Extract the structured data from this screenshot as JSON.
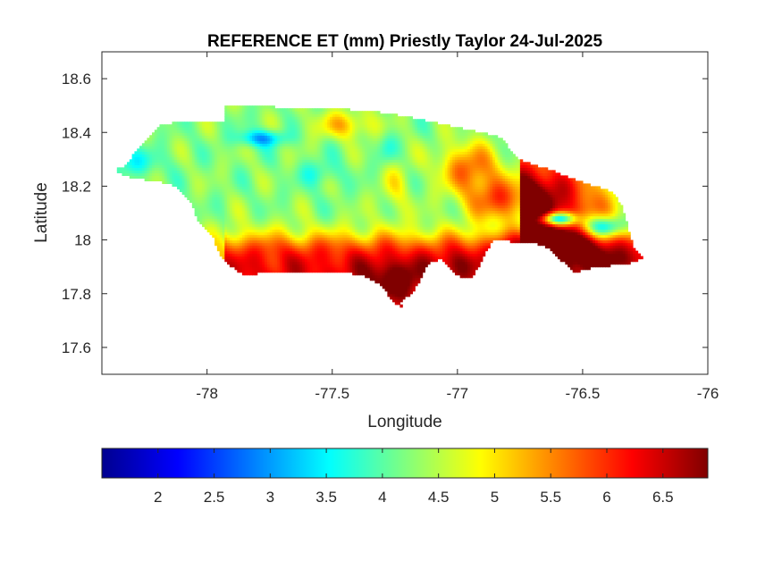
{
  "chart_data": {
    "type": "heatmap",
    "title": "REFERENCE ET (mm) Priestly Taylor 24-Jul-2025",
    "xlabel": "Longitude",
    "ylabel": "Latitude",
    "xlim": [
      -78.42,
      -76.0
    ],
    "ylim": [
      17.5,
      18.7
    ],
    "xticks": [
      -78,
      -77.5,
      -77,
      -76.5,
      -76
    ],
    "yticks": [
      17.6,
      17.8,
      18,
      18.2,
      18.4,
      18.6
    ],
    "grid": false,
    "colormap": "jet",
    "colorbar": {
      "location": "south",
      "range": [
        1.5,
        6.9
      ],
      "ticks": [
        2,
        2.5,
        3,
        3.5,
        4,
        4.5,
        5,
        5.5,
        6,
        6.5
      ]
    },
    "region_outline": [
      [
        -78.37,
        18.26
      ],
      [
        -78.32,
        18.28
      ],
      [
        -78.29,
        18.33
      ],
      [
        -78.26,
        18.35
      ],
      [
        -78.22,
        18.4
      ],
      [
        -78.18,
        18.43
      ],
      [
        -78.1,
        18.44
      ],
      [
        -78.02,
        18.44
      ],
      [
        -77.93,
        18.44
      ],
      [
        -77.93,
        18.5
      ],
      [
        -77.8,
        18.5
      ],
      [
        -77.65,
        18.49
      ],
      [
        -77.5,
        18.49
      ],
      [
        -77.35,
        18.48
      ],
      [
        -77.2,
        18.46
      ],
      [
        -77.05,
        18.43
      ],
      [
        -76.9,
        18.4
      ],
      [
        -76.82,
        18.38
      ],
      [
        -76.8,
        18.35
      ],
      [
        -76.75,
        18.3
      ],
      [
        -76.7,
        18.28
      ],
      [
        -76.62,
        18.26
      ],
      [
        -76.55,
        18.23
      ],
      [
        -76.45,
        18.2
      ],
      [
        -76.38,
        18.18
      ],
      [
        -76.34,
        18.12
      ],
      [
        -76.32,
        18.05
      ],
      [
        -76.3,
        17.98
      ],
      [
        -76.26,
        17.93
      ],
      [
        -76.33,
        17.91
      ],
      [
        -76.45,
        17.9
      ],
      [
        -76.53,
        17.88
      ],
      [
        -76.58,
        17.92
      ],
      [
        -76.63,
        17.97
      ],
      [
        -76.7,
        17.99
      ],
      [
        -76.75,
        17.99
      ],
      [
        -76.82,
        18.0
      ],
      [
        -76.86,
        18.0
      ],
      [
        -76.9,
        17.93
      ],
      [
        -76.94,
        17.86
      ],
      [
        -76.98,
        17.86
      ],
      [
        -77.03,
        17.89
      ],
      [
        -77.06,
        17.93
      ],
      [
        -77.12,
        17.91
      ],
      [
        -77.15,
        17.85
      ],
      [
        -77.18,
        17.8
      ],
      [
        -77.23,
        17.77
      ],
      [
        -77.2,
        17.74
      ],
      [
        -77.26,
        17.77
      ],
      [
        -77.3,
        17.83
      ],
      [
        -77.38,
        17.87
      ],
      [
        -77.45,
        17.88
      ],
      [
        -77.55,
        17.88
      ],
      [
        -77.65,
        17.88
      ],
      [
        -77.75,
        17.88
      ],
      [
        -77.85,
        17.87
      ],
      [
        -77.9,
        17.9
      ],
      [
        -77.95,
        17.95
      ],
      [
        -77.98,
        18.02
      ],
      [
        -78.04,
        18.08
      ],
      [
        -78.06,
        18.14
      ],
      [
        -78.12,
        18.2
      ],
      [
        -78.2,
        18.22
      ],
      [
        -78.3,
        18.23
      ],
      [
        -78.37,
        18.26
      ]
    ]
  }
}
